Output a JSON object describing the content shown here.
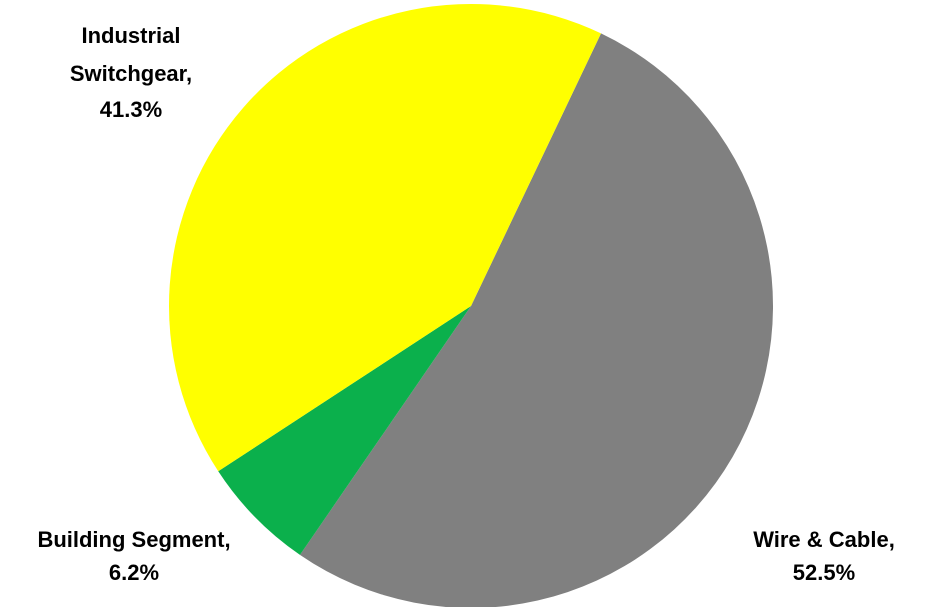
{
  "chart_data": {
    "type": "pie",
    "title": "",
    "slices": [
      {
        "label": "Wire & Cable",
        "value": 52.5,
        "display_value": "52.5%",
        "color": "#808080"
      },
      {
        "label": "Building Segment",
        "value": 6.2,
        "display_value": "6.2%",
        "color": "#0BB04C"
      },
      {
        "label": "Industrial Switchgear",
        "value": 41.3,
        "display_value": "41.3%",
        "color": "#FFFF00"
      }
    ],
    "start_angle_deg": 25.5,
    "direction": "clockwise",
    "legend": "none",
    "data_labels": "outside"
  }
}
